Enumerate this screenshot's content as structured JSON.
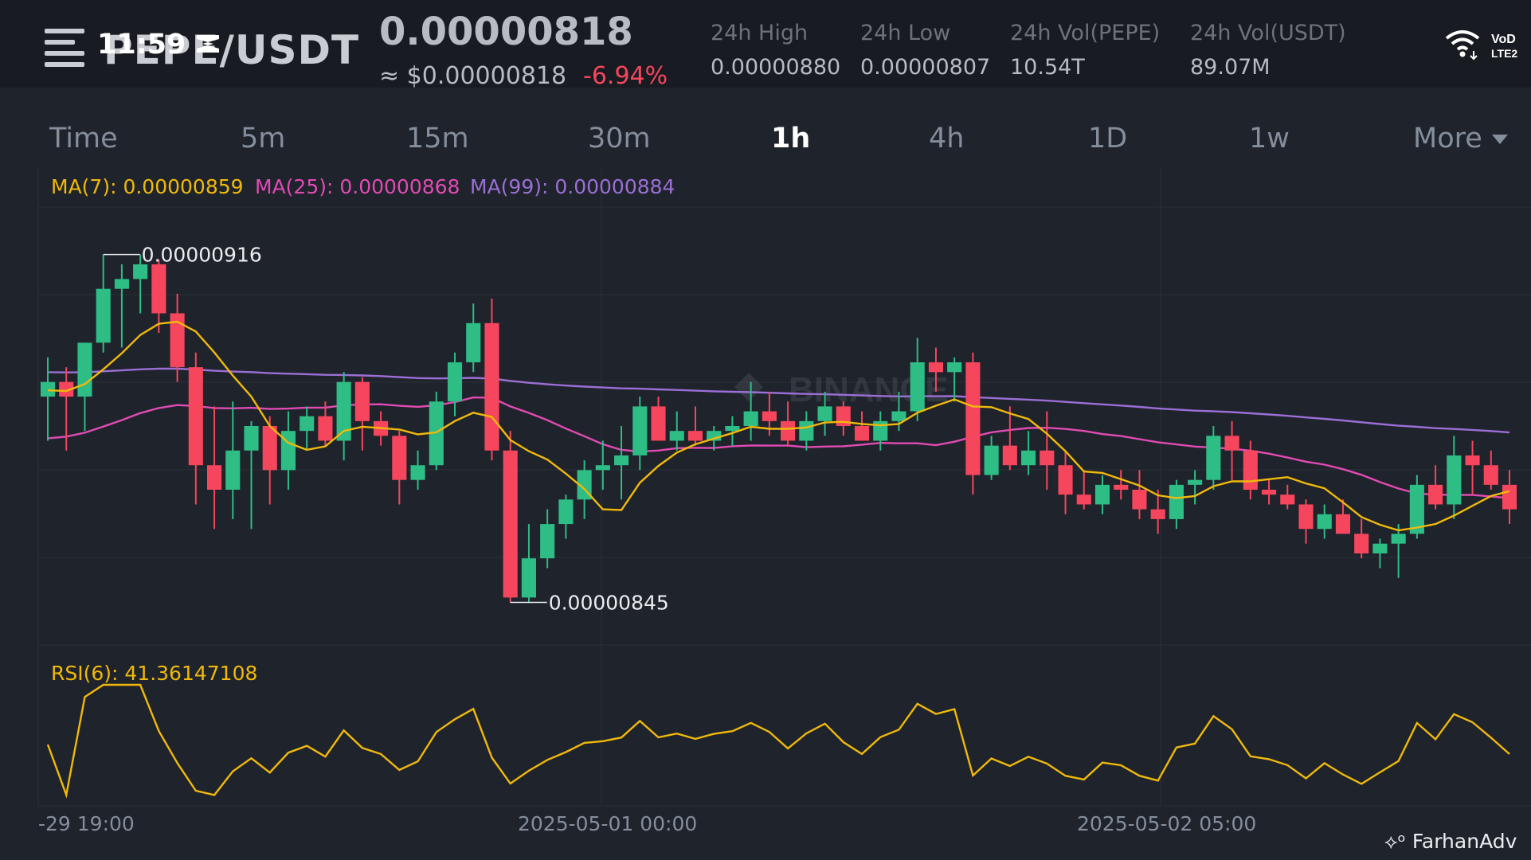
{
  "status_bar": {
    "time": "11:59"
  },
  "header": {
    "pair": "PEPE/USDT",
    "last_price": "0.00000818",
    "usd_price": "≈ $0.00000818",
    "change": "-6.94%",
    "stats": [
      {
        "label": "24h High",
        "value": "0.00000880"
      },
      {
        "label": "24h Low",
        "value": "0.00000807"
      },
      {
        "label": "24h Vol(PEPE)",
        "value": "10.54T"
      },
      {
        "label": "24h Vol(USDT)",
        "value": "89.07M"
      }
    ]
  },
  "tabs": [
    "Time",
    "5m",
    "15m",
    "30m",
    "1h",
    "4h",
    "1D",
    "1w",
    "More"
  ],
  "active_tab": "1h",
  "indicators": {
    "ma7": "MA(7): 0.00000859",
    "ma25": "MA(25): 0.00000868",
    "ma99": "MA(99): 0.00000884",
    "rsi": "RSI(6): 41.36147108"
  },
  "annotations": {
    "high": "0.00000916",
    "low": "0.00000845"
  },
  "x_labels": [
    "-29 19:00",
    "2025-05-01 00:00",
    "2025-05-02 05:00"
  ],
  "watermark": "FarhanAdv",
  "colors": {
    "up": "#2ebd85",
    "down": "#f6465d",
    "ma7": "#f0b90b",
    "ma25": "#e04bb4",
    "ma99": "#9b6fd6",
    "rsi": "#f0b90b"
  },
  "chart_data": {
    "type": "candlestick",
    "interval": "1h",
    "ylabel_unit": "USDT",
    "candles": [
      {
        "o": 8.87e-06,
        "h": 8.95e-06,
        "l": 8.78e-06,
        "c": 8.9e-06
      },
      {
        "o": 8.9e-06,
        "h": 8.93e-06,
        "l": 8.76e-06,
        "c": 8.87e-06
      },
      {
        "o": 8.87e-06,
        "h": 8.98e-06,
        "l": 8.8e-06,
        "c": 8.98e-06
      },
      {
        "o": 8.98e-06,
        "h": 9.16e-06,
        "l": 8.96e-06,
        "c": 9.09e-06
      },
      {
        "o": 9.09e-06,
        "h": 9.14e-06,
        "l": 8.97e-06,
        "c": 9.11e-06
      },
      {
        "o": 9.11e-06,
        "h": 9.16e-06,
        "l": 9.04e-06,
        "c": 9.14e-06
      },
      {
        "o": 9.14e-06,
        "h": 9.15e-06,
        "l": 9e-06,
        "c": 9.04e-06
      },
      {
        "o": 9.04e-06,
        "h": 9.08e-06,
        "l": 8.9e-06,
        "c": 8.93e-06
      },
      {
        "o": 8.93e-06,
        "h": 8.96e-06,
        "l": 8.65e-06,
        "c": 8.73e-06
      },
      {
        "o": 8.73e-06,
        "h": 8.85e-06,
        "l": 8.6e-06,
        "c": 8.68e-06
      },
      {
        "o": 8.68e-06,
        "h": 8.86e-06,
        "l": 8.62e-06,
        "c": 8.76e-06
      },
      {
        "o": 8.76e-06,
        "h": 8.82e-06,
        "l": 8.6e-06,
        "c": 8.81e-06
      },
      {
        "o": 8.81e-06,
        "h": 8.83e-06,
        "l": 8.65e-06,
        "c": 8.72e-06
      },
      {
        "o": 8.72e-06,
        "h": 8.84e-06,
        "l": 8.68e-06,
        "c": 8.8e-06
      },
      {
        "o": 8.8e-06,
        "h": 8.85e-06,
        "l": 8.76e-06,
        "c": 8.83e-06
      },
      {
        "o": 8.83e-06,
        "h": 8.86e-06,
        "l": 8.77e-06,
        "c": 8.78e-06
      },
      {
        "o": 8.78e-06,
        "h": 8.92e-06,
        "l": 8.74e-06,
        "c": 8.9e-06
      },
      {
        "o": 8.9e-06,
        "h": 8.91e-06,
        "l": 8.76e-06,
        "c": 8.82e-06
      },
      {
        "o": 8.82e-06,
        "h": 8.84e-06,
        "l": 8.77e-06,
        "c": 8.79e-06
      },
      {
        "o": 8.79e-06,
        "h": 8.8e-06,
        "l": 8.65e-06,
        "c": 8.7e-06
      },
      {
        "o": 8.7e-06,
        "h": 8.76e-06,
        "l": 8.68e-06,
        "c": 8.73e-06
      },
      {
        "o": 8.73e-06,
        "h": 8.88e-06,
        "l": 8.72e-06,
        "c": 8.86e-06
      },
      {
        "o": 8.86e-06,
        "h": 8.96e-06,
        "l": 8.83e-06,
        "c": 8.94e-06
      },
      {
        "o": 8.94e-06,
        "h": 9.06e-06,
        "l": 8.92e-06,
        "c": 9.02e-06
      },
      {
        "o": 9.02e-06,
        "h": 9.07e-06,
        "l": 8.74e-06,
        "c": 8.76e-06
      },
      {
        "o": 8.76e-06,
        "h": 8.8e-06,
        "l": 8.45e-06,
        "c": 8.46e-06
      },
      {
        "o": 8.46e-06,
        "h": 8.61e-06,
        "l": 8.45e-06,
        "c": 8.54e-06
      },
      {
        "o": 8.54e-06,
        "h": 8.64e-06,
        "l": 8.52e-06,
        "c": 8.61e-06
      },
      {
        "o": 8.61e-06,
        "h": 8.67e-06,
        "l": 8.58e-06,
        "c": 8.66e-06
      },
      {
        "o": 8.66e-06,
        "h": 8.74e-06,
        "l": 8.62e-06,
        "c": 8.72e-06
      },
      {
        "o": 8.72e-06,
        "h": 8.78e-06,
        "l": 8.68e-06,
        "c": 8.73e-06
      },
      {
        "o": 8.73e-06,
        "h": 8.81e-06,
        "l": 8.66e-06,
        "c": 8.75e-06
      },
      {
        "o": 8.75e-06,
        "h": 8.87e-06,
        "l": 8.72e-06,
        "c": 8.85e-06
      },
      {
        "o": 8.85e-06,
        "h": 8.87e-06,
        "l": 8.78e-06,
        "c": 8.78e-06
      },
      {
        "o": 8.78e-06,
        "h": 8.84e-06,
        "l": 8.76e-06,
        "c": 8.8e-06
      },
      {
        "o": 8.8e-06,
        "h": 8.85e-06,
        "l": 8.77e-06,
        "c": 8.78e-06
      },
      {
        "o": 8.78e-06,
        "h": 8.81e-06,
        "l": 8.76e-06,
        "c": 8.8e-06
      },
      {
        "o": 8.8e-06,
        "h": 8.83e-06,
        "l": 8.77e-06,
        "c": 8.81e-06
      },
      {
        "o": 8.81e-06,
        "h": 8.9e-06,
        "l": 8.78e-06,
        "c": 8.84e-06
      },
      {
        "o": 8.84e-06,
        "h": 8.88e-06,
        "l": 8.79e-06,
        "c": 8.82e-06
      },
      {
        "o": 8.82e-06,
        "h": 8.86e-06,
        "l": 8.77e-06,
        "c": 8.78e-06
      },
      {
        "o": 8.78e-06,
        "h": 8.84e-06,
        "l": 8.76e-06,
        "c": 8.82e-06
      },
      {
        "o": 8.82e-06,
        "h": 8.88e-06,
        "l": 8.79e-06,
        "c": 8.85e-06
      },
      {
        "o": 8.85e-06,
        "h": 8.86e-06,
        "l": 8.79e-06,
        "c": 8.81e-06
      },
      {
        "o": 8.81e-06,
        "h": 8.84e-06,
        "l": 8.78e-06,
        "c": 8.78e-06
      },
      {
        "o": 8.78e-06,
        "h": 8.84e-06,
        "l": 8.76e-06,
        "c": 8.82e-06
      },
      {
        "o": 8.82e-06,
        "h": 8.88e-06,
        "l": 8.8e-06,
        "c": 8.84e-06
      },
      {
        "o": 8.84e-06,
        "h": 8.99e-06,
        "l": 8.82e-06,
        "c": 8.94e-06
      },
      {
        "o": 8.94e-06,
        "h": 8.97e-06,
        "l": 8.88e-06,
        "c": 8.92e-06
      },
      {
        "o": 8.92e-06,
        "h": 8.95e-06,
        "l": 8.86e-06,
        "c": 8.94e-06
      },
      {
        "o": 8.94e-06,
        "h": 8.96e-06,
        "l": 8.67e-06,
        "c": 8.71e-06
      },
      {
        "o": 8.71e-06,
        "h": 8.79e-06,
        "l": 8.7e-06,
        "c": 8.77e-06
      },
      {
        "o": 8.77e-06,
        "h": 8.85e-06,
        "l": 8.72e-06,
        "c": 8.73e-06
      },
      {
        "o": 8.73e-06,
        "h": 8.8e-06,
        "l": 8.71e-06,
        "c": 8.76e-06
      },
      {
        "o": 8.76e-06,
        "h": 8.84e-06,
        "l": 8.68e-06,
        "c": 8.73e-06
      },
      {
        "o": 8.73e-06,
        "h": 8.76e-06,
        "l": 8.63e-06,
        "c": 8.67e-06
      },
      {
        "o": 8.67e-06,
        "h": 8.72e-06,
        "l": 8.64e-06,
        "c": 8.65e-06
      },
      {
        "o": 8.65e-06,
        "h": 8.71e-06,
        "l": 8.63e-06,
        "c": 8.69e-06
      },
      {
        "o": 8.69e-06,
        "h": 8.72e-06,
        "l": 8.66e-06,
        "c": 8.68e-06
      },
      {
        "o": 8.68e-06,
        "h": 8.72e-06,
        "l": 8.62e-06,
        "c": 8.64e-06
      },
      {
        "o": 8.64e-06,
        "h": 8.68e-06,
        "l": 8.59e-06,
        "c": 8.62e-06
      },
      {
        "o": 8.62e-06,
        "h": 8.7e-06,
        "l": 8.6e-06,
        "c": 8.69e-06
      },
      {
        "o": 8.69e-06,
        "h": 8.72e-06,
        "l": 8.65e-06,
        "c": 8.7e-06
      },
      {
        "o": 8.7e-06,
        "h": 8.81e-06,
        "l": 8.68e-06,
        "c": 8.79e-06
      },
      {
        "o": 8.79e-06,
        "h": 8.82e-06,
        "l": 8.7e-06,
        "c": 8.76e-06
      },
      {
        "o": 8.76e-06,
        "h": 8.78e-06,
        "l": 8.66e-06,
        "c": 8.68e-06
      },
      {
        "o": 8.68e-06,
        "h": 8.7e-06,
        "l": 8.65e-06,
        "c": 8.67e-06
      },
      {
        "o": 8.67e-06,
        "h": 8.69e-06,
        "l": 8.64e-06,
        "c": 8.65e-06
      },
      {
        "o": 8.65e-06,
        "h": 8.66e-06,
        "l": 8.57e-06,
        "c": 8.6e-06
      },
      {
        "o": 8.6e-06,
        "h": 8.65e-06,
        "l": 8.58e-06,
        "c": 8.63e-06
      },
      {
        "o": 8.63e-06,
        "h": 8.66e-06,
        "l": 8.59e-06,
        "c": 8.59e-06
      },
      {
        "o": 8.59e-06,
        "h": 8.62e-06,
        "l": 8.54e-06,
        "c": 8.55e-06
      },
      {
        "o": 8.55e-06,
        "h": 8.58e-06,
        "l": 8.52e-06,
        "c": 8.57e-06
      },
      {
        "o": 8.57e-06,
        "h": 8.61e-06,
        "l": 8.5e-06,
        "c": 8.59e-06
      },
      {
        "o": 8.59e-06,
        "h": 8.71e-06,
        "l": 8.58e-06,
        "c": 8.69e-06
      },
      {
        "o": 8.69e-06,
        "h": 8.73e-06,
        "l": 8.64e-06,
        "c": 8.65e-06
      },
      {
        "o": 8.65e-06,
        "h": 8.79e-06,
        "l": 8.62e-06,
        "c": 8.75e-06
      },
      {
        "o": 8.75e-06,
        "h": 8.78e-06,
        "l": 8.67e-06,
        "c": 8.73e-06
      },
      {
        "o": 8.73e-06,
        "h": 8.76e-06,
        "l": 8.68e-06,
        "c": 8.69e-06
      },
      {
        "o": 8.69e-06,
        "h": 8.72e-06,
        "l": 8.61e-06,
        "c": 8.64e-06
      }
    ]
  }
}
